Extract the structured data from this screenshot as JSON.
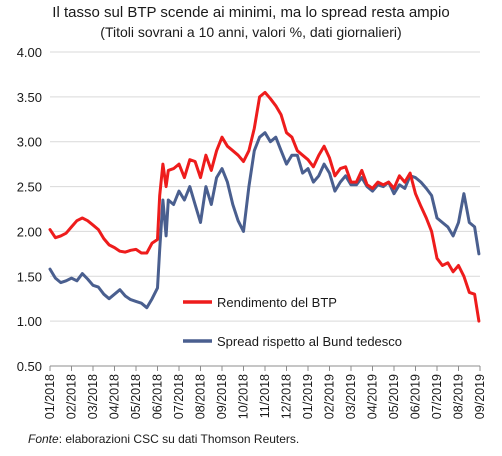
{
  "chart_data": {
    "type": "line",
    "title": "Il tasso sul BTP scende ai minimi, ma lo spread resta ampio",
    "subtitle": "(Titoli sovrani a 10 anni, valori %, dati giornalieri)",
    "xlabel": "",
    "ylabel": "",
    "ylim": [
      0.5,
      4.0
    ],
    "yticks": [
      "0.50",
      "1.00",
      "1.50",
      "2.00",
      "2.50",
      "3.00",
      "3.50",
      "4.00"
    ],
    "xtick_labels": [
      "01/2018",
      "02/2018",
      "03/2018",
      "04/2018",
      "05/2018",
      "06/2018",
      "07/2018",
      "08/2018",
      "09/2018",
      "10/2018",
      "11/2018",
      "12/2018",
      "01/2019",
      "02/2019",
      "03/2019",
      "04/2019",
      "05/2019",
      "06/2019",
      "07/2019",
      "08/2019",
      "09/2019"
    ],
    "grid": "horizontal",
    "legend_placement": "center-right",
    "series": [
      {
        "name": "Rendimento del BTP",
        "color": "#ee1c1c",
        "x": [
          0,
          0.25,
          0.5,
          0.75,
          1.0,
          1.25,
          1.5,
          1.75,
          2.0,
          2.25,
          2.5,
          2.75,
          3.0,
          3.25,
          3.5,
          3.75,
          4.0,
          4.25,
          4.5,
          4.75,
          5.0,
          5.1,
          5.25,
          5.4,
          5.5,
          5.75,
          6.0,
          6.25,
          6.5,
          6.75,
          7.0,
          7.25,
          7.5,
          7.75,
          8.0,
          8.25,
          8.5,
          8.75,
          9.0,
          9.25,
          9.5,
          9.75,
          10.0,
          10.25,
          10.5,
          10.75,
          11.0,
          11.25,
          11.5,
          11.75,
          12.0,
          12.25,
          12.5,
          12.75,
          13.0,
          13.25,
          13.5,
          13.75,
          14.0,
          14.25,
          14.5,
          14.75,
          15.0,
          15.25,
          15.5,
          15.75,
          16.0,
          16.25,
          16.5,
          16.75,
          17.0,
          17.25,
          17.5,
          17.75,
          18.0,
          18.25,
          18.5,
          18.75,
          19.0,
          19.25,
          19.5,
          19.75,
          19.95
        ],
        "values": [
          2.02,
          1.93,
          1.95,
          1.98,
          2.05,
          2.12,
          2.15,
          2.12,
          2.07,
          2.02,
          1.92,
          1.85,
          1.82,
          1.78,
          1.77,
          1.79,
          1.8,
          1.76,
          1.76,
          1.87,
          1.91,
          2.4,
          2.75,
          2.5,
          2.68,
          2.7,
          2.75,
          2.6,
          2.8,
          2.78,
          2.6,
          2.85,
          2.68,
          2.9,
          3.05,
          2.95,
          2.9,
          2.85,
          2.78,
          2.9,
          3.15,
          3.5,
          3.55,
          3.48,
          3.4,
          3.3,
          3.1,
          3.05,
          2.9,
          2.85,
          2.8,
          2.72,
          2.85,
          2.95,
          2.82,
          2.62,
          2.7,
          2.72,
          2.55,
          2.55,
          2.68,
          2.52,
          2.48,
          2.55,
          2.52,
          2.55,
          2.48,
          2.62,
          2.55,
          2.65,
          2.42,
          2.28,
          2.15,
          2.0,
          1.7,
          1.62,
          1.65,
          1.55,
          1.62,
          1.5,
          1.32,
          1.3,
          1.0
        ]
      },
      {
        "name": "Spread rispetto al Bund tedesco",
        "color": "#4a5f8f",
        "x": [
          0,
          0.25,
          0.5,
          0.75,
          1.0,
          1.25,
          1.5,
          1.75,
          2.0,
          2.25,
          2.5,
          2.75,
          3.0,
          3.25,
          3.5,
          3.75,
          4.0,
          4.25,
          4.5,
          4.75,
          5.0,
          5.1,
          5.25,
          5.4,
          5.5,
          5.75,
          6.0,
          6.25,
          6.5,
          6.75,
          7.0,
          7.25,
          7.5,
          7.75,
          8.0,
          8.25,
          8.5,
          8.75,
          9.0,
          9.25,
          9.5,
          9.75,
          10.0,
          10.25,
          10.5,
          10.75,
          11.0,
          11.25,
          11.5,
          11.75,
          12.0,
          12.25,
          12.5,
          12.75,
          13.0,
          13.25,
          13.5,
          13.75,
          14.0,
          14.25,
          14.5,
          14.75,
          15.0,
          15.25,
          15.5,
          15.75,
          16.0,
          16.25,
          16.5,
          16.75,
          17.0,
          17.25,
          17.5,
          17.75,
          18.0,
          18.25,
          18.5,
          18.75,
          19.0,
          19.25,
          19.5,
          19.75,
          19.95
        ],
        "values": [
          1.58,
          1.48,
          1.43,
          1.45,
          1.48,
          1.45,
          1.53,
          1.47,
          1.4,
          1.38,
          1.3,
          1.25,
          1.3,
          1.35,
          1.28,
          1.24,
          1.22,
          1.2,
          1.15,
          1.25,
          1.37,
          1.8,
          2.35,
          1.95,
          2.35,
          2.3,
          2.45,
          2.35,
          2.5,
          2.3,
          2.1,
          2.5,
          2.3,
          2.6,
          2.7,
          2.55,
          2.3,
          2.12,
          2.0,
          2.5,
          2.9,
          3.05,
          3.1,
          3.0,
          3.05,
          2.9,
          2.75,
          2.85,
          2.85,
          2.65,
          2.7,
          2.55,
          2.62,
          2.75,
          2.65,
          2.45,
          2.55,
          2.62,
          2.52,
          2.52,
          2.6,
          2.5,
          2.45,
          2.52,
          2.5,
          2.55,
          2.42,
          2.52,
          2.48,
          2.62,
          2.6,
          2.55,
          2.48,
          2.4,
          2.15,
          2.1,
          2.05,
          1.95,
          2.1,
          2.42,
          2.1,
          2.05,
          1.75
        ]
      }
    ]
  },
  "source": {
    "label": "Fonte",
    "text": ": elaborazioni  CSC su dati Thomson Reuters."
  }
}
